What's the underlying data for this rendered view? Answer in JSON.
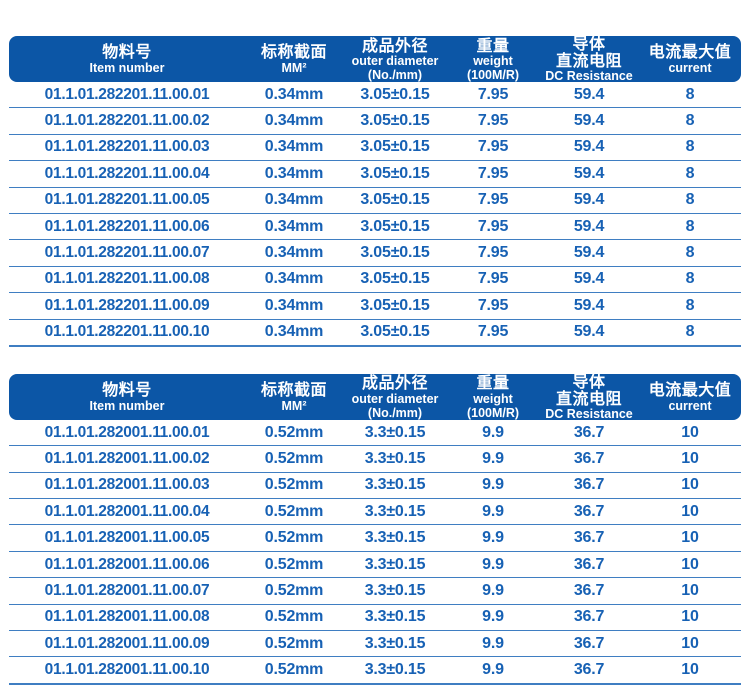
{
  "colors": {
    "header_bg": "#0c56a6",
    "header_text": "#ffffff",
    "row_text": "#1761b4",
    "row_line": "#3f7ec2",
    "page_bg": "#ffffff"
  },
  "tables": [
    {
      "name": "spec-table-282201",
      "columns": [
        {
          "lines": [
            "物料号",
            "Item number"
          ]
        },
        {
          "lines": [
            "标称截面",
            "MM²"
          ]
        },
        {
          "lines": [
            "成品外径",
            "outer diameter",
            "(No./mm)"
          ]
        },
        {
          "lines": [
            "重量",
            "weight",
            "(100M/R)"
          ]
        },
        {
          "lines": [
            "导体",
            "直流电阻",
            "DC Resistance"
          ]
        },
        {
          "lines": [
            "电流最大值",
            "current"
          ]
        }
      ],
      "rows": [
        [
          "01.1.01.282201.11.00.01",
          "0.34mm",
          "3.05±0.15",
          "7.95",
          "59.4",
          "8"
        ],
        [
          "01.1.01.282201.11.00.02",
          "0.34mm",
          "3.05±0.15",
          "7.95",
          "59.4",
          "8"
        ],
        [
          "01.1.01.282201.11.00.03",
          "0.34mm",
          "3.05±0.15",
          "7.95",
          "59.4",
          "8"
        ],
        [
          "01.1.01.282201.11.00.04",
          "0.34mm",
          "3.05±0.15",
          "7.95",
          "59.4",
          "8"
        ],
        [
          "01.1.01.282201.11.00.05",
          "0.34mm",
          "3.05±0.15",
          "7.95",
          "59.4",
          "8"
        ],
        [
          "01.1.01.282201.11.00.06",
          "0.34mm",
          "3.05±0.15",
          "7.95",
          "59.4",
          "8"
        ],
        [
          "01.1.01.282201.11.00.07",
          "0.34mm",
          "3.05±0.15",
          "7.95",
          "59.4",
          "8"
        ],
        [
          "01.1.01.282201.11.00.08",
          "0.34mm",
          "3.05±0.15",
          "7.95",
          "59.4",
          "8"
        ],
        [
          "01.1.01.282201.11.00.09",
          "0.34mm",
          "3.05±0.15",
          "7.95",
          "59.4",
          "8"
        ],
        [
          "01.1.01.282201.11.00.10",
          "0.34mm",
          "3.05±0.15",
          "7.95",
          "59.4",
          "8"
        ]
      ]
    },
    {
      "name": "spec-table-282001",
      "columns": [
        {
          "lines": [
            "物料号",
            "Item number"
          ]
        },
        {
          "lines": [
            "标称截面",
            "MM²"
          ]
        },
        {
          "lines": [
            "成品外径",
            "outer diameter",
            "(No./mm)"
          ]
        },
        {
          "lines": [
            "重量",
            "weight",
            "(100M/R)"
          ]
        },
        {
          "lines": [
            "导体",
            "直流电阻",
            "DC Resistance"
          ]
        },
        {
          "lines": [
            "电流最大值",
            "current"
          ]
        }
      ],
      "rows": [
        [
          "01.1.01.282001.11.00.01",
          "0.52mm",
          "3.3±0.15",
          "9.9",
          "36.7",
          "10"
        ],
        [
          "01.1.01.282001.11.00.02",
          "0.52mm",
          "3.3±0.15",
          "9.9",
          "36.7",
          "10"
        ],
        [
          "01.1.01.282001.11.00.03",
          "0.52mm",
          "3.3±0.15",
          "9.9",
          "36.7",
          "10"
        ],
        [
          "01.1.01.282001.11.00.04",
          "0.52mm",
          "3.3±0.15",
          "9.9",
          "36.7",
          "10"
        ],
        [
          "01.1.01.282001.11.00.05",
          "0.52mm",
          "3.3±0.15",
          "9.9",
          "36.7",
          "10"
        ],
        [
          "01.1.01.282001.11.00.06",
          "0.52mm",
          "3.3±0.15",
          "9.9",
          "36.7",
          "10"
        ],
        [
          "01.1.01.282001.11.00.07",
          "0.52mm",
          "3.3±0.15",
          "9.9",
          "36.7",
          "10"
        ],
        [
          "01.1.01.282001.11.00.08",
          "0.52mm",
          "3.3±0.15",
          "9.9",
          "36.7",
          "10"
        ],
        [
          "01.1.01.282001.11.00.09",
          "0.52mm",
          "3.3±0.15",
          "9.9",
          "36.7",
          "10"
        ],
        [
          "01.1.01.282001.11.00.10",
          "0.52mm",
          "3.3±0.15",
          "9.9",
          "36.7",
          "10"
        ]
      ]
    }
  ]
}
